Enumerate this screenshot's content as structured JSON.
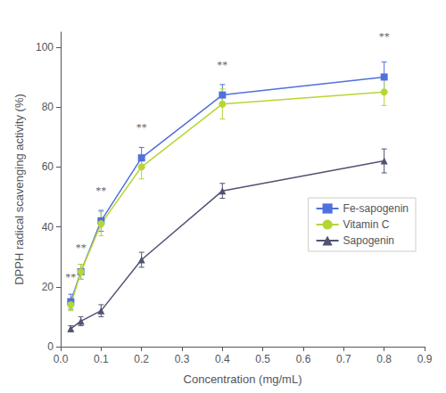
{
  "chart_data": {
    "type": "line",
    "x": [
      0.025,
      0.05,
      0.1,
      0.2,
      0.4,
      0.8
    ],
    "series": [
      {
        "name": "Fe-sapogenin",
        "values": [
          15,
          25,
          42,
          63,
          84,
          90
        ],
        "err": [
          2.5,
          2.5,
          3.5,
          3.5,
          3.5,
          5.0
        ],
        "marker": "square"
      },
      {
        "name": "Vitamin C",
        "values": [
          14,
          25,
          41,
          60,
          81,
          85
        ],
        "err": [
          2.0,
          2.5,
          4.0,
          4.0,
          5.0,
          4.5
        ],
        "marker": "circle"
      },
      {
        "name": "Sapogenin",
        "values": [
          6,
          8.5,
          12,
          29,
          52,
          62
        ],
        "err": [
          1.0,
          1.5,
          2.0,
          2.5,
          2.5,
          4.0
        ],
        "marker": "triangle"
      }
    ],
    "annotations": [
      {
        "x": 0.025,
        "y": 21,
        "text": "**"
      },
      {
        "x": 0.05,
        "y": 31,
        "text": "**"
      },
      {
        "x": 0.1,
        "y": 50,
        "text": "**"
      },
      {
        "x": 0.2,
        "y": 71,
        "text": "**"
      },
      {
        "x": 0.4,
        "y": 92,
        "text": "**"
      },
      {
        "x": 0.8,
        "y": 101.5,
        "text": "**"
      }
    ],
    "xlabel": "Concentration (mg/mL)",
    "ylabel": "DPPH radical scavenging activity (%)",
    "xlim": [
      0,
      0.9
    ],
    "ylim": [
      0,
      105
    ],
    "xticks": [
      {
        "value": 0.0,
        "label": "0.0"
      },
      0.1,
      0.2,
      0.3,
      0.4,
      0.5,
      0.6,
      0.7,
      0.8,
      0.9
    ],
    "yticks": [
      0,
      20,
      40,
      60,
      80,
      100
    ],
    "grid": false,
    "legend": "right"
  }
}
